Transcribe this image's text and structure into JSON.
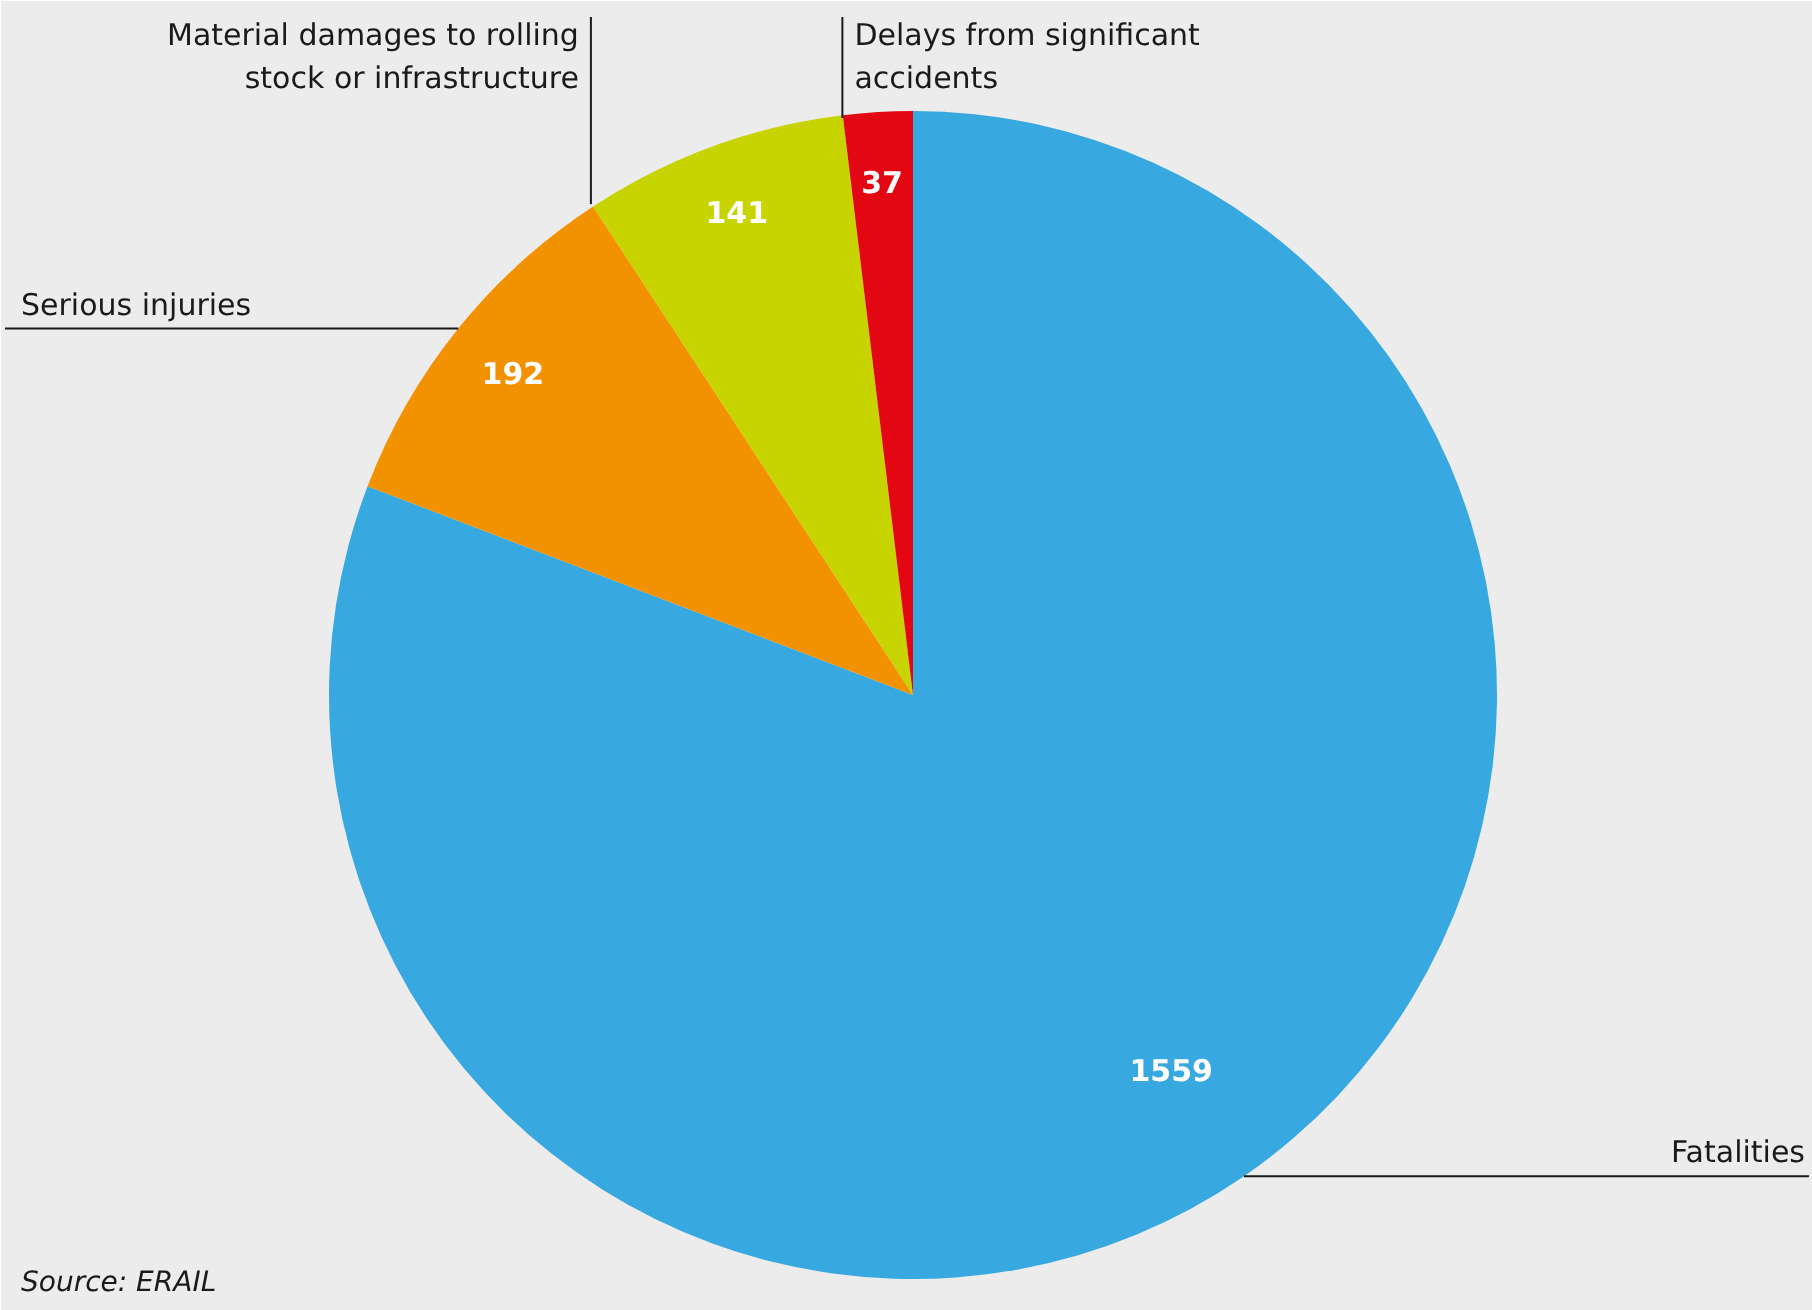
{
  "chart_data": {
    "type": "pie",
    "categories": [
      "Fatalities",
      "Serious injuries",
      "Material damages to rolling stock or infrastructure",
      "Delays from significant accidents"
    ],
    "values": [
      1559,
      192,
      141,
      37
    ],
    "colors": [
      "#38a8e0",
      "#f39200",
      "#c8d400",
      "#e30613"
    ],
    "data_labels": true,
    "annotations": [
      "Source: ERAIL"
    ]
  }
}
